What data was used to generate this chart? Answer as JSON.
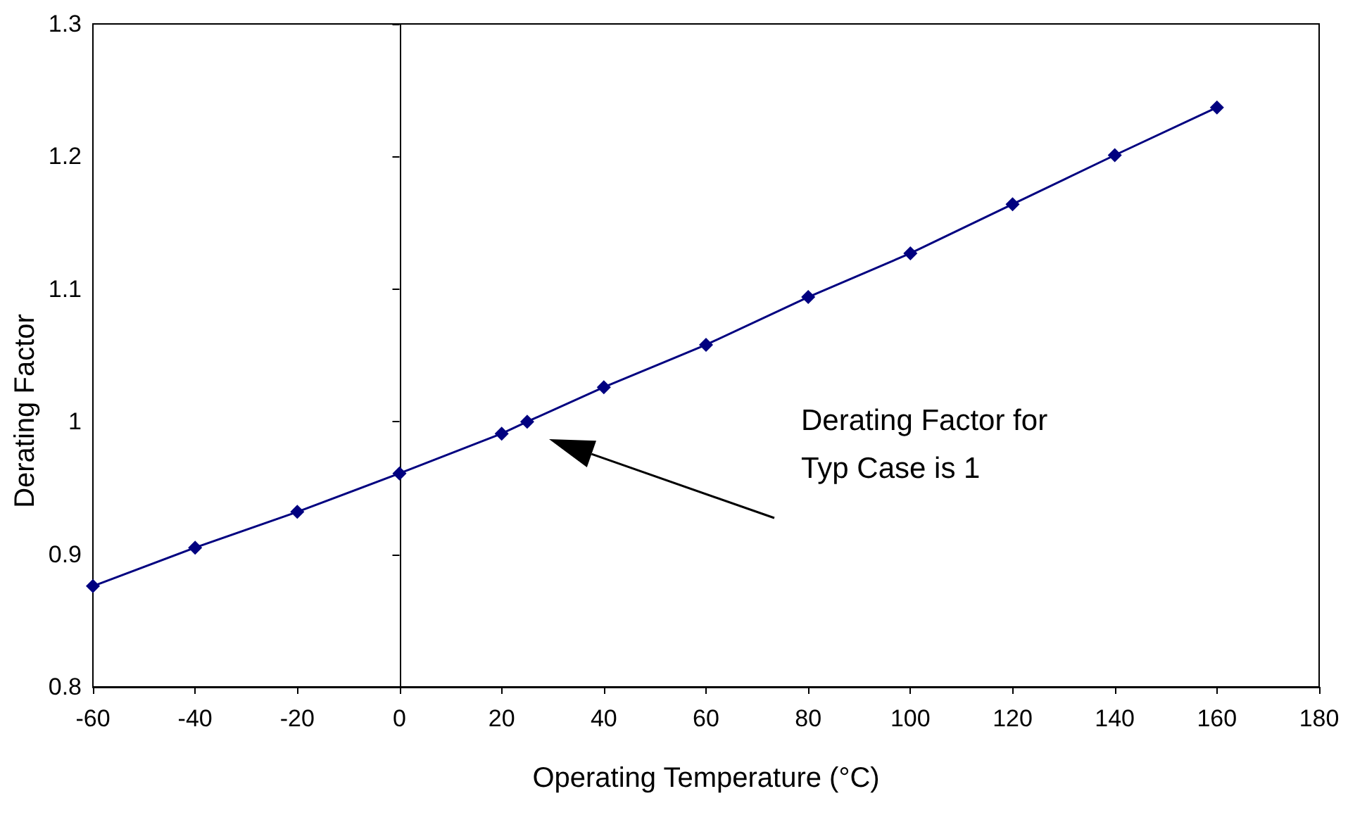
{
  "chart_data": {
    "type": "line",
    "xlabel": "Operating Temperature (°C)",
    "ylabel": "Derating Factor",
    "x": [
      -60,
      -40,
      -20,
      0,
      20,
      25,
      40,
      60,
      80,
      100,
      120,
      140,
      160
    ],
    "series": [
      {
        "color": "#000080",
        "values": [
          0.876,
          0.905,
          0.932,
          0.961,
          0.991,
          1.0,
          1.026,
          1.058,
          1.094,
          1.127,
          1.164,
          1.201,
          1.237
        ]
      }
    ],
    "xlim": [
      -60,
      180
    ],
    "xticks": [
      -60,
      -40,
      -20,
      0,
      20,
      40,
      60,
      80,
      100,
      120,
      140,
      160,
      180
    ],
    "ylim": [
      0.8,
      1.3
    ],
    "yticks": [
      0.8,
      0.9,
      1,
      1.1,
      1.2,
      1.3
    ],
    "annotations": [
      "Derating Factor for Typ Case is 1"
    ],
    "marker": "diamond",
    "line_style": "solid"
  }
}
